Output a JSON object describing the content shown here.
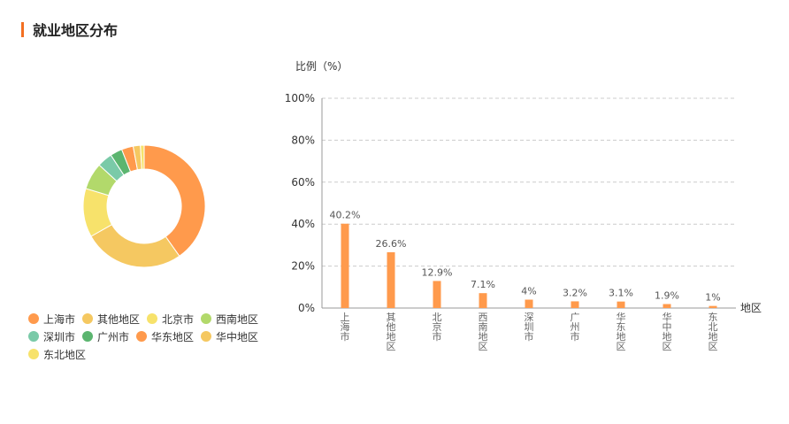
{
  "page_title": "就业地区分布",
  "colors": {
    "accent": "#f36f21"
  },
  "chart_data": [
    {
      "type": "pie",
      "style": "donut",
      "categories": [
        "上海市",
        "其他地区",
        "北京市",
        "西南地区",
        "深圳市",
        "广州市",
        "华东地区",
        "华中地区",
        "东北地区"
      ],
      "values": [
        40.2,
        26.6,
        12.9,
        7.1,
        4,
        3.2,
        3.1,
        1.9,
        1
      ],
      "colors": [
        "#ff9a4c",
        "#f5c861",
        "#f7e26b",
        "#b2d96b",
        "#7acaa8",
        "#5bb56f",
        "#ff9a4c",
        "#f5c861",
        "#f7e26b"
      ],
      "legend_position": "bottom"
    },
    {
      "type": "bar",
      "ylabel": "比例（%）",
      "xlabel": "地区",
      "categories": [
        "上海市",
        "其他地区",
        "北京市",
        "西南地区",
        "深圳市",
        "广州市",
        "华东地区",
        "华中地区",
        "东北地区"
      ],
      "values": [
        40.2,
        26.6,
        12.9,
        7.1,
        4,
        3.2,
        3.1,
        1.9,
        1
      ],
      "value_labels": [
        "40.2%",
        "26.6%",
        "12.9%",
        "7.1%",
        "4%",
        "3.2%",
        "3.1%",
        "1.9%",
        "1%"
      ],
      "ylim": [
        0,
        100
      ],
      "yticks": [
        "0%",
        "20%",
        "40%",
        "60%",
        "80%",
        "100%"
      ],
      "grid": true,
      "bar_color": "#ff9a4c"
    }
  ]
}
